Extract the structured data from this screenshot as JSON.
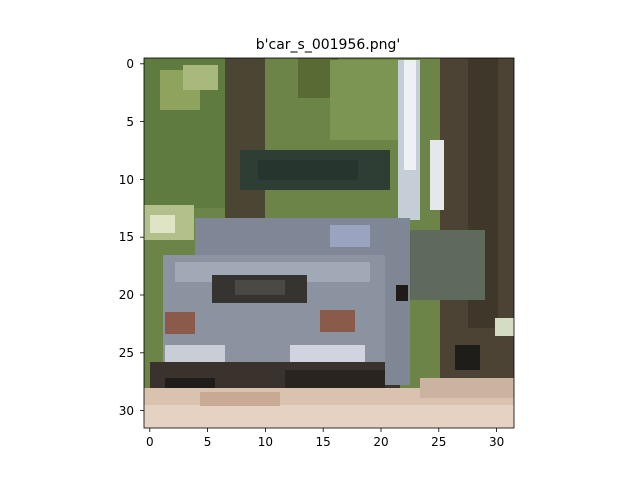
{
  "title": "b'car_s_001956.png'",
  "image": {
    "subject": "blurry low-resolution photo of a grey car parked among trees",
    "grid_size": 32
  },
  "axes": {
    "x_ticks": [
      "0",
      "5",
      "10",
      "15",
      "20",
      "25",
      "30"
    ],
    "y_ticks": [
      "0",
      "5",
      "10",
      "15",
      "20",
      "25",
      "30"
    ]
  },
  "colors": {
    "foliage": "#6f8a48",
    "trunk": "#4b4032",
    "car_body": "#8e96a3",
    "car_shadow": "#2e2a26",
    "road": "#d8c0ac",
    "sky_glare": "#e6ebef"
  }
}
